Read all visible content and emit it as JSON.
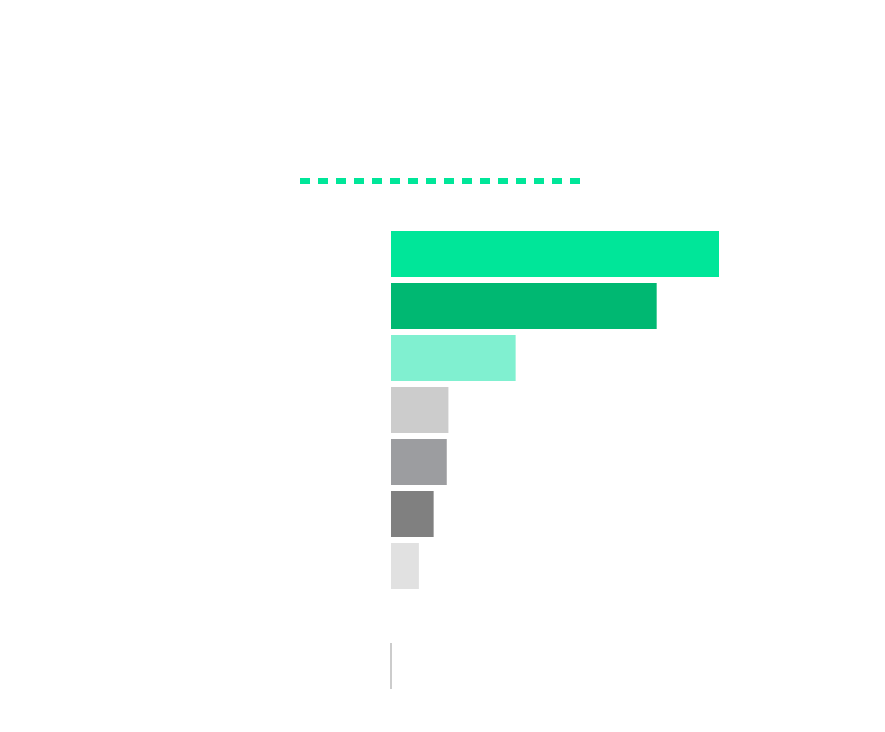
{
  "chart_data": {
    "type": "bar",
    "orientation": "horizontal",
    "title": "",
    "xlabel": "",
    "ylabel": "",
    "categories": [
      "",
      "",
      "",
      "",
      "",
      "",
      ""
    ],
    "values": [
      100,
      81,
      38,
      17.5,
      17,
      13,
      8.5
    ],
    "xlim": [
      0,
      100
    ],
    "grid": false,
    "legend": "none",
    "colors": [
      "#00e699",
      "#00b872",
      "#80f0d0",
      "#cccccc",
      "#9c9da0",
      "#808080",
      "#e1e1e1"
    ],
    "title_marker_color": "#00e699",
    "baseline_color": "#999999"
  }
}
